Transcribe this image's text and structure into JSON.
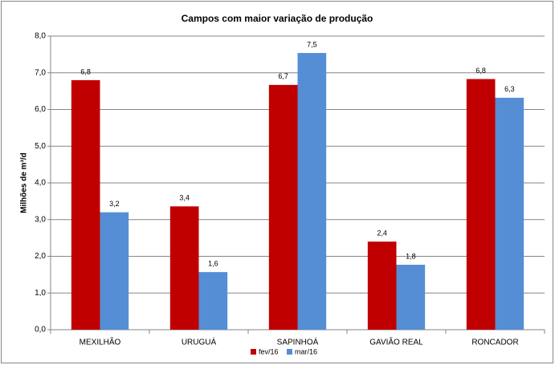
{
  "chart_data": {
    "type": "bar",
    "title": "Campos com maior variação de produção",
    "y_label": "Milhões de m³/d",
    "categories": [
      "MEXILHÃO",
      "URUGUÁ",
      "SAPINHOÁ",
      "GAVIÃO REAL",
      "RONCADOR"
    ],
    "series": [
      {
        "name": "fev/16",
        "color": "#c00000",
        "values": [
          6.8,
          3.36,
          6.67,
          2.4,
          6.83
        ],
        "value_labels": [
          "6,8",
          "3,4",
          "6,7",
          "2,4",
          "6,8"
        ]
      },
      {
        "name": "mar/16",
        "color": "#558ed5",
        "values": [
          3.2,
          1.57,
          7.54,
          1.77,
          6.32
        ],
        "value_labels": [
          "3,2",
          "1,6",
          "7,5",
          "1,8",
          "6,3"
        ]
      }
    ],
    "ylim": [
      0,
      8
    ],
    "yticks": [
      {
        "value": 0,
        "label": "0,0"
      },
      {
        "value": 1,
        "label": "1,0"
      },
      {
        "value": 2,
        "label": "2,0"
      },
      {
        "value": 3,
        "label": "3,0"
      },
      {
        "value": 4,
        "label": "4,0"
      },
      {
        "value": 5,
        "label": "5,0"
      },
      {
        "value": 6,
        "label": "6,0"
      },
      {
        "value": 7,
        "label": "7,0"
      },
      {
        "value": 8,
        "label": "8,0"
      }
    ],
    "grid": true,
    "legend": "bottom"
  }
}
